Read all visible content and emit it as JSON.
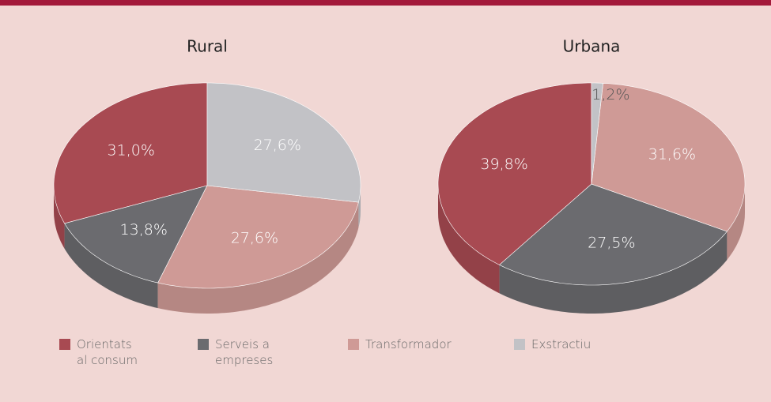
{
  "chart_data": [
    {
      "type": "pie",
      "title": "Rural",
      "categories": [
        "Orientats al consum",
        "Serveis a empreses",
        "Transformador",
        "Exstractiu"
      ],
      "values": [
        31.0,
        13.8,
        27.6,
        27.6
      ],
      "value_labels": [
        "31,0%",
        "13,8%",
        "27,6%",
        "27,6%"
      ],
      "colors": [
        "#a84a52",
        "#6b6b6f",
        "#cf9a96",
        "#c2c2c6"
      ]
    },
    {
      "type": "pie",
      "title": "Urbana",
      "categories": [
        "Orientats al consum",
        "Serveis a empreses",
        "Transformador",
        "Exstractiu"
      ],
      "values": [
        39.8,
        27.5,
        31.6,
        1.2
      ],
      "value_labels": [
        "39,8%",
        "27,5%",
        "31,6%",
        "1,2%"
      ],
      "colors": [
        "#a84a52",
        "#6b6b6f",
        "#cf9a96",
        "#c2c2c6"
      ]
    }
  ]
}
